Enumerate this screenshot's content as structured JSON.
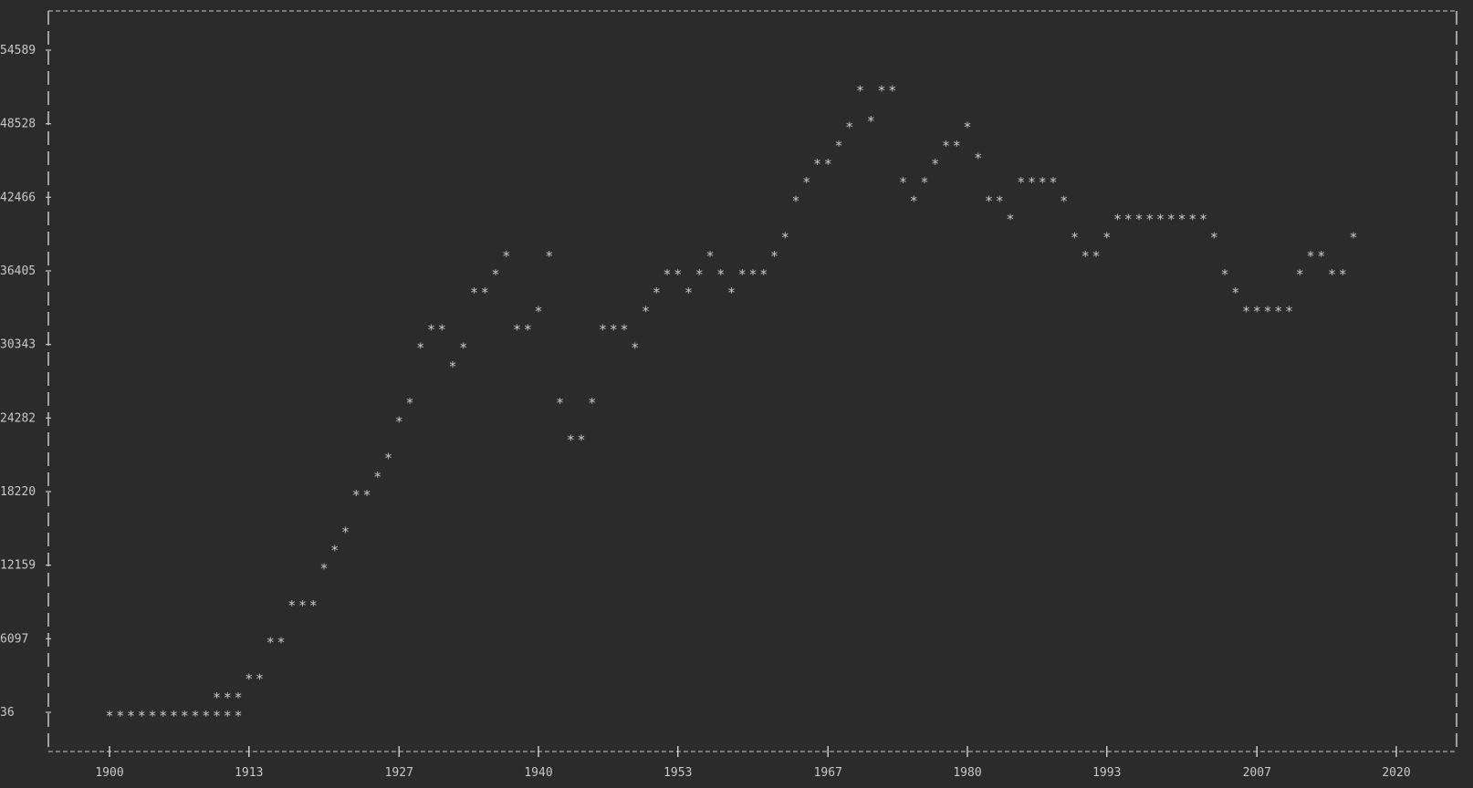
{
  "chart_data": {
    "type": "scatter",
    "marker": "*",
    "title": "",
    "xlabel": "",
    "ylabel": "",
    "xlim": [
      1895,
      2026
    ],
    "ylim": [
      36,
      57000
    ],
    "x_ticks": [
      1900,
      1913,
      1927,
      1940,
      1953,
      1967,
      1980,
      1993,
      2007,
      2020
    ],
    "x_tick_labels": [
      "1900",
      "1913",
      "1927",
      "1940",
      "1953",
      "1967",
      "1980",
      "1993",
      "2007",
      "2020"
    ],
    "y_ticks": [
      36,
      6097,
      12159,
      18220,
      24282,
      30343,
      36405,
      42466,
      48528,
      54589
    ],
    "y_tick_labels": [
      "36",
      "6097",
      "12159",
      "18220",
      "24282",
      "30343",
      "36405",
      "42466",
      "48528",
      "54589"
    ],
    "grid": false,
    "legend": "none",
    "colors": {
      "background": "#2b2b2b",
      "foreground": "#c8c8c8"
    },
    "series": [
      {
        "points": [
          [
            1900,
            36
          ],
          [
            1901,
            36
          ],
          [
            1902,
            36
          ],
          [
            1903,
            36
          ],
          [
            1904,
            36
          ],
          [
            1905,
            36
          ],
          [
            1906,
            36
          ],
          [
            1907,
            36
          ],
          [
            1908,
            36
          ],
          [
            1909,
            36
          ],
          [
            1910,
            36
          ],
          [
            1911,
            36
          ],
          [
            1912,
            36
          ],
          [
            1910,
            1550
          ],
          [
            1911,
            1550
          ],
          [
            1912,
            1550
          ],
          [
            1913,
            3070
          ],
          [
            1914,
            3070
          ],
          [
            1915,
            6097
          ],
          [
            1916,
            6097
          ],
          [
            1917,
            9120
          ],
          [
            1918,
            9120
          ],
          [
            1919,
            9120
          ],
          [
            1920,
            12159
          ],
          [
            1921,
            13670
          ],
          [
            1922,
            15190
          ],
          [
            1923,
            18220
          ],
          [
            1924,
            18220
          ],
          [
            1925,
            19740
          ],
          [
            1926,
            21250
          ],
          [
            1927,
            24282
          ],
          [
            1928,
            25800
          ],
          [
            1929,
            30343
          ],
          [
            1930,
            31860
          ],
          [
            1931,
            31860
          ],
          [
            1932,
            28830
          ],
          [
            1933,
            30343
          ],
          [
            1934,
            34890
          ],
          [
            1935,
            34890
          ],
          [
            1936,
            36405
          ],
          [
            1937,
            37920
          ],
          [
            1938,
            31860
          ],
          [
            1939,
            31860
          ],
          [
            1940,
            33375
          ],
          [
            1941,
            37920
          ],
          [
            1942,
            25800
          ],
          [
            1943,
            22770
          ],
          [
            1944,
            22770
          ],
          [
            1945,
            25800
          ],
          [
            1946,
            31860
          ],
          [
            1947,
            31860
          ],
          [
            1948,
            31860
          ],
          [
            1949,
            30343
          ],
          [
            1950,
            33375
          ],
          [
            1951,
            34890
          ],
          [
            1952,
            36405
          ],
          [
            1953,
            36405
          ],
          [
            1954,
            34890
          ],
          [
            1955,
            36405
          ],
          [
            1956,
            37920
          ],
          [
            1957,
            36405
          ],
          [
            1958,
            34890
          ],
          [
            1959,
            36405
          ],
          [
            1960,
            36405
          ],
          [
            1961,
            36405
          ],
          [
            1962,
            37920
          ],
          [
            1963,
            39440
          ],
          [
            1964,
            42466
          ],
          [
            1965,
            43980
          ],
          [
            1966,
            45500
          ],
          [
            1967,
            45500
          ],
          [
            1968,
            47010
          ],
          [
            1969,
            48528
          ],
          [
            1970,
            51560
          ],
          [
            1971,
            49040
          ],
          [
            1972,
            51560
          ],
          [
            1973,
            51560
          ],
          [
            1974,
            43980
          ],
          [
            1975,
            42466
          ],
          [
            1976,
            43980
          ],
          [
            1977,
            45500
          ],
          [
            1978,
            47010
          ],
          [
            1979,
            47010
          ],
          [
            1980,
            48528
          ],
          [
            1981,
            46000
          ],
          [
            1982,
            42466
          ],
          [
            1983,
            42466
          ],
          [
            1984,
            40960
          ],
          [
            1985,
            43980
          ],
          [
            1986,
            43980
          ],
          [
            1987,
            43980
          ],
          [
            1988,
            43980
          ],
          [
            1989,
            42466
          ],
          [
            1990,
            39440
          ],
          [
            1991,
            37920
          ],
          [
            1992,
            37920
          ],
          [
            1993,
            39440
          ],
          [
            1994,
            40960
          ],
          [
            1995,
            40960
          ],
          [
            1996,
            40960
          ],
          [
            1997,
            40960
          ],
          [
            1998,
            40960
          ],
          [
            1999,
            40960
          ],
          [
            2000,
            40960
          ],
          [
            2001,
            40960
          ],
          [
            2002,
            40960
          ],
          [
            2003,
            39440
          ],
          [
            2004,
            36405
          ],
          [
            2005,
            34890
          ],
          [
            2006,
            33375
          ],
          [
            2007,
            33375
          ],
          [
            2008,
            33375
          ],
          [
            2009,
            33375
          ],
          [
            2010,
            33375
          ],
          [
            2011,
            36405
          ],
          [
            2012,
            37920
          ],
          [
            2013,
            37920
          ],
          [
            2014,
            36405
          ],
          [
            2015,
            36405
          ],
          [
            2016,
            39440
          ]
        ]
      }
    ]
  }
}
